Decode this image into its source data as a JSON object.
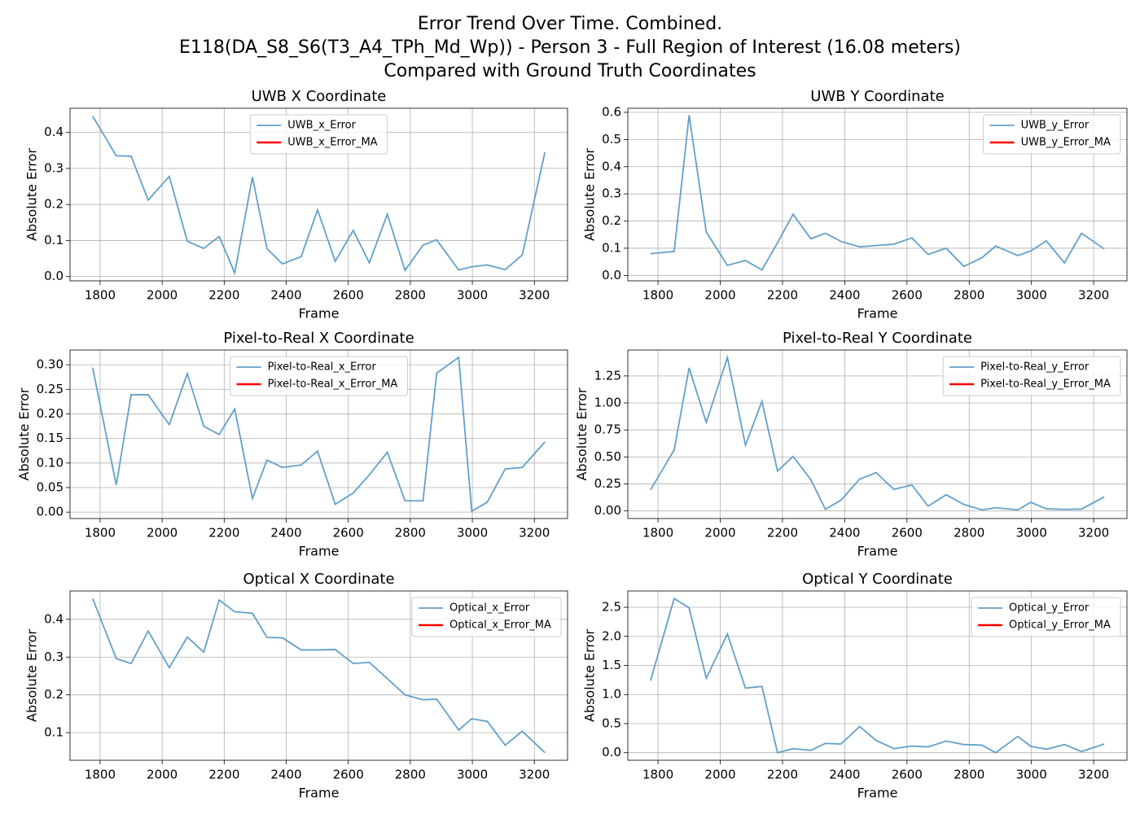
{
  "title": [
    "Error Trend Over Time. Combined.",
    "E118(DA_S8_S6(T3_A4_TPh_Md_Wp)) - Person 3 - Full Region of Interest (16.08 meters)",
    "Compared with Ground Truth Coordinates"
  ],
  "chart_data": [
    {
      "type": "line",
      "title": "UWB X Coordinate",
      "xlabel": "Frame",
      "ylabel": "Absolute Error",
      "legend": "upper center",
      "grid": true,
      "x": [
        1776,
        1852,
        1900,
        1955,
        2023,
        2081,
        2134,
        2184,
        2234,
        2291,
        2338,
        2388,
        2448,
        2501,
        2558,
        2616,
        2668,
        2726,
        2783,
        2841,
        2885,
        2956,
        2998,
        3048,
        3106,
        3161,
        3234
      ],
      "series": [
        {
          "name": "UWB_x_Error",
          "color": "#62a0ca",
          "values": [
            0.445,
            0.335,
            0.334,
            0.212,
            0.278,
            0.098,
            0.078,
            0.111,
            0.01,
            0.276,
            0.077,
            0.035,
            0.055,
            0.185,
            0.042,
            0.128,
            0.038,
            0.173,
            0.017,
            0.087,
            0.102,
            0.018,
            0.027,
            0.032,
            0.019,
            0.06,
            0.345
          ]
        },
        {
          "name": "UWB_x_Error_MA",
          "color": "#ff0000",
          "values": [
            null,
            null,
            null,
            null,
            null,
            null,
            null,
            null,
            null,
            null,
            null,
            null,
            null,
            null,
            null,
            null,
            null,
            null,
            null,
            null,
            null,
            null,
            null,
            null,
            null,
            null,
            null
          ]
        }
      ],
      "xlim": [
        1703,
        3307
      ],
      "xticks": [
        1800,
        2000,
        2200,
        2400,
        2600,
        2800,
        3000,
        3200
      ],
      "ylim": [
        -0.012,
        0.467
      ],
      "yticks": [
        {
          "value": 0,
          "label": "0.0"
        },
        0.1,
        0.2,
        0.3,
        0.4
      ]
    },
    {
      "type": "line",
      "title": "UWB Y Coordinate",
      "xlabel": "Frame",
      "ylabel": "Absolute Error",
      "legend": "upper right",
      "grid": true,
      "x": [
        1776,
        1852,
        1900,
        1955,
        2023,
        2081,
        2134,
        2184,
        2234,
        2291,
        2338,
        2388,
        2448,
        2501,
        2558,
        2616,
        2668,
        2726,
        2783,
        2841,
        2885,
        2956,
        2998,
        3048,
        3106,
        3161,
        3234
      ],
      "series": [
        {
          "name": "UWB_y_Error",
          "color": "#62a0ca",
          "values": [
            0.08,
            0.088,
            0.59,
            0.16,
            0.037,
            0.055,
            0.02,
            0.12,
            0.225,
            0.135,
            0.155,
            0.125,
            0.105,
            0.11,
            0.115,
            0.138,
            0.077,
            0.1,
            0.033,
            0.065,
            0.108,
            0.073,
            0.09,
            0.127,
            0.046,
            0.155,
            0.097
          ]
        },
        {
          "name": "UWB_y_Error_MA",
          "color": "#ff0000",
          "values": [
            null,
            null,
            null,
            null,
            null,
            null,
            null,
            null,
            null,
            null,
            null,
            null,
            null,
            null,
            null,
            null,
            null,
            null,
            null,
            null,
            null,
            null,
            null,
            null,
            null,
            null,
            null
          ]
        }
      ],
      "xlim": [
        1703,
        3307
      ],
      "xticks": [
        1800,
        2000,
        2200,
        2400,
        2600,
        2800,
        3000,
        3200
      ],
      "ylim": [
        -0.02,
        0.615
      ],
      "yticks": [
        {
          "value": 0,
          "label": "0.0"
        },
        0.1,
        0.2,
        0.3,
        0.4,
        0.5,
        0.6
      ]
    },
    {
      "type": "line",
      "title": "Pixel-to-Real X Coordinate",
      "xlabel": "Frame",
      "ylabel": "Absolute Error",
      "legend": "upper center",
      "grid": true,
      "x": [
        1776,
        1852,
        1900,
        1955,
        2023,
        2081,
        2134,
        2184,
        2234,
        2291,
        2338,
        2388,
        2448,
        2501,
        2558,
        2616,
        2668,
        2726,
        2783,
        2841,
        2885,
        2956,
        2998,
        3048,
        3106,
        3161,
        3234
      ],
      "series": [
        {
          "name": "Pixel-to-Real_x_Error",
          "color": "#62a0ca",
          "values": [
            0.294,
            0.055,
            0.239,
            0.239,
            0.178,
            0.282,
            0.175,
            0.158,
            0.21,
            0.028,
            0.106,
            0.091,
            0.096,
            0.124,
            0.016,
            0.039,
            0.076,
            0.122,
            0.023,
            0.023,
            0.283,
            0.315,
            0.002,
            0.02,
            0.088,
            0.091,
            0.143
          ]
        },
        {
          "name": "Pixel-to-Real_x_Error_MA",
          "color": "#ff0000",
          "values": [
            null,
            null,
            null,
            null,
            null,
            null,
            null,
            null,
            null,
            null,
            null,
            null,
            null,
            null,
            null,
            null,
            null,
            null,
            null,
            null,
            null,
            null,
            null,
            null,
            null,
            null,
            null
          ]
        }
      ],
      "xlim": [
        1703,
        3307
      ],
      "xticks": [
        1800,
        2000,
        2200,
        2400,
        2600,
        2800,
        3000,
        3200
      ],
      "ylim": [
        -0.013,
        0.33
      ],
      "yticks": [
        {
          "value": 0,
          "label": "0.00"
        },
        0.05,
        {
          "value": 0.1,
          "label": "0.10"
        },
        0.15,
        {
          "value": 0.2,
          "label": "0.20"
        },
        0.25,
        {
          "value": 0.3,
          "label": "0.30"
        }
      ]
    },
    {
      "type": "line",
      "title": "Pixel-to-Real Y Coordinate",
      "xlabel": "Frame",
      "ylabel": "Absolute Error",
      "legend": "upper right",
      "grid": true,
      "x": [
        1776,
        1852,
        1900,
        1955,
        2023,
        2081,
        2134,
        2184,
        2234,
        2291,
        2338,
        2388,
        2448,
        2501,
        2558,
        2616,
        2668,
        2726,
        2783,
        2841,
        2885,
        2956,
        2998,
        3048,
        3106,
        3161,
        3234
      ],
      "series": [
        {
          "name": "Pixel-to-Real_y_Error",
          "color": "#62a0ca",
          "values": [
            0.195,
            0.565,
            1.325,
            0.82,
            1.42,
            0.61,
            1.015,
            0.37,
            0.505,
            0.29,
            0.015,
            0.1,
            0.295,
            0.355,
            0.2,
            0.24,
            0.045,
            0.15,
            0.06,
            0.01,
            0.03,
            0.01,
            0.08,
            0.02,
            0.015,
            0.018,
            0.13
          ]
        },
        {
          "name": "Pixel-to-Real_y_Error_MA",
          "color": "#ff0000",
          "values": [
            null,
            null,
            null,
            null,
            null,
            null,
            null,
            null,
            null,
            null,
            null,
            null,
            null,
            null,
            null,
            null,
            null,
            null,
            null,
            null,
            null,
            null,
            null,
            null,
            null,
            null,
            null
          ]
        }
      ],
      "xlim": [
        1703,
        3307
      ],
      "xticks": [
        1800,
        2000,
        2200,
        2400,
        2600,
        2800,
        3000,
        3200
      ],
      "ylim": [
        -0.07,
        1.49
      ],
      "yticks": [
        {
          "value": 0,
          "label": "0.00"
        },
        0.25,
        {
          "value": 0.5,
          "label": "0.50"
        },
        0.75,
        {
          "value": 1,
          "label": "1.00"
        },
        1.25
      ]
    },
    {
      "type": "line",
      "title": "Optical X Coordinate",
      "xlabel": "Frame",
      "ylabel": "Absolute Error",
      "legend": "upper right",
      "grid": true,
      "x": [
        1776,
        1852,
        1900,
        1955,
        2023,
        2081,
        2134,
        2184,
        2234,
        2291,
        2338,
        2388,
        2448,
        2501,
        2558,
        2616,
        2668,
        2726,
        2783,
        2841,
        2885,
        2956,
        2998,
        3048,
        3106,
        3161,
        3234
      ],
      "series": [
        {
          "name": "Optical_x_Error",
          "color": "#62a0ca",
          "values": [
            0.455,
            0.296,
            0.283,
            0.369,
            0.272,
            0.353,
            0.313,
            0.451,
            0.42,
            0.416,
            0.352,
            0.351,
            0.319,
            0.319,
            0.32,
            0.283,
            0.286,
            0.243,
            0.2,
            0.187,
            0.189,
            0.107,
            0.137,
            0.13,
            0.067,
            0.104,
            0.047
          ]
        },
        {
          "name": "Optical_x_Error_MA",
          "color": "#ff0000",
          "values": [
            null,
            null,
            null,
            null,
            null,
            null,
            null,
            null,
            null,
            null,
            null,
            null,
            null,
            null,
            null,
            null,
            null,
            null,
            null,
            null,
            null,
            null,
            null,
            null,
            null,
            null,
            null
          ]
        }
      ],
      "xlim": [
        1703,
        3307
      ],
      "xticks": [
        1800,
        2000,
        2200,
        2400,
        2600,
        2800,
        3000,
        3200
      ],
      "ylim": [
        0.027,
        0.475
      ],
      "yticks": [
        0.1,
        0.2,
        0.3,
        0.4
      ]
    },
    {
      "type": "line",
      "title": "Optical Y Coordinate",
      "xlabel": "Frame",
      "ylabel": "Absolute Error",
      "legend": "upper right",
      "grid": true,
      "x": [
        1776,
        1852,
        1900,
        1955,
        2023,
        2081,
        2134,
        2184,
        2234,
        2291,
        2338,
        2388,
        2448,
        2501,
        2558,
        2616,
        2668,
        2726,
        2783,
        2841,
        2885,
        2956,
        2998,
        3048,
        3106,
        3161,
        3234
      ],
      "series": [
        {
          "name": "Optical_y_Error",
          "color": "#62a0ca",
          "values": [
            1.24,
            2.65,
            2.49,
            1.28,
            2.04,
            1.11,
            1.14,
            0.0,
            0.07,
            0.04,
            0.16,
            0.15,
            0.45,
            0.21,
            0.07,
            0.115,
            0.1,
            0.2,
            0.14,
            0.13,
            0.0,
            0.28,
            0.11,
            0.06,
            0.14,
            0.02,
            0.15
          ]
        },
        {
          "name": "Optical_y_Error_MA",
          "color": "#ff0000",
          "values": [
            null,
            null,
            null,
            null,
            null,
            null,
            null,
            null,
            null,
            null,
            null,
            null,
            null,
            null,
            null,
            null,
            null,
            null,
            null,
            null,
            null,
            null,
            null,
            null,
            null,
            null,
            null
          ]
        }
      ],
      "xlim": [
        1703,
        3307
      ],
      "xticks": [
        1800,
        2000,
        2200,
        2400,
        2600,
        2800,
        3000,
        3200
      ],
      "ylim": [
        -0.13,
        2.78
      ],
      "yticks": [
        {
          "value": 0,
          "label": "0.0"
        },
        0.5,
        {
          "value": 1,
          "label": "1.0"
        },
        1.5,
        {
          "value": 2,
          "label": "2.0"
        },
        2.5
      ]
    }
  ]
}
